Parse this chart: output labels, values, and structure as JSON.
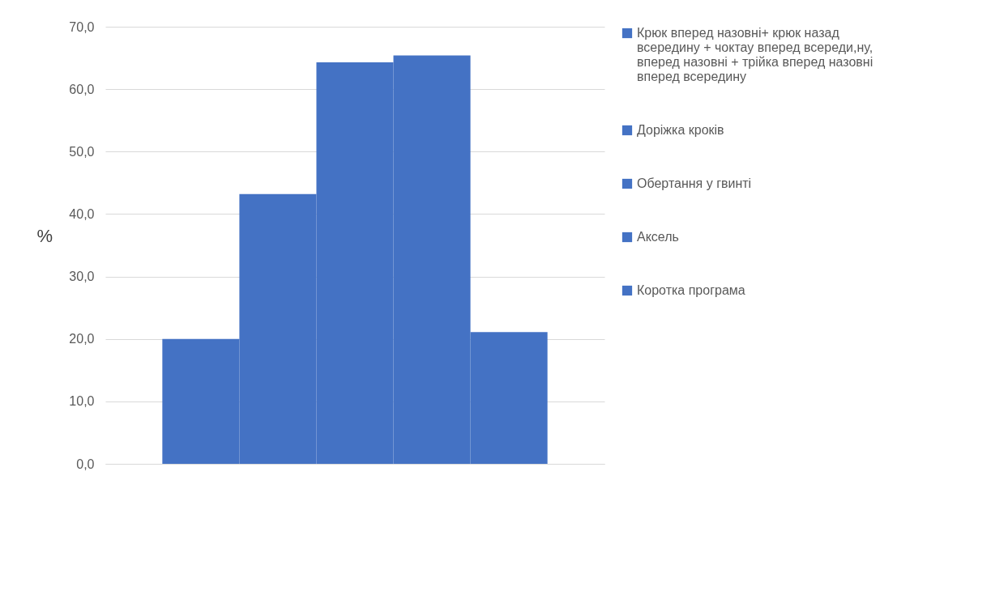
{
  "chart_data": {
    "type": "bar",
    "ylabel": "%",
    "categories": [
      null
    ],
    "series": [
      {
        "name": "Крюк вперед назовні+ крюк назад всередину + чоктау вперед всереди,ну, вперед назовні + трійка вперед назовні вперед всередину",
        "color": "#4472c4",
        "values": [
          20.0
        ]
      },
      {
        "name": "Доріжка кроків",
        "color": "#4472c4",
        "values": [
          43.2
        ]
      },
      {
        "name": "Обертання у гвинті",
        "color": "#4472c4",
        "values": [
          64.3
        ]
      },
      {
        "name": "Аксель",
        "color": "#4472c4",
        "values": [
          65.4
        ]
      },
      {
        "name": "Коротка програма",
        "color": "#4472c4",
        "values": [
          21.1
        ]
      }
    ],
    "ylim": [
      0,
      70
    ],
    "yticks": [
      {
        "value": 0,
        "label": "0,0"
      },
      {
        "value": 10,
        "label": "10,0"
      },
      {
        "value": 20,
        "label": "20,0"
      },
      {
        "value": 30,
        "label": "30,0"
      },
      {
        "value": 40,
        "label": "40,0"
      },
      {
        "value": 50,
        "label": "50,0"
      },
      {
        "value": 60,
        "label": "60,0"
      },
      {
        "value": 70,
        "label": "70,0"
      }
    ],
    "grid": "y",
    "legend": "right"
  }
}
